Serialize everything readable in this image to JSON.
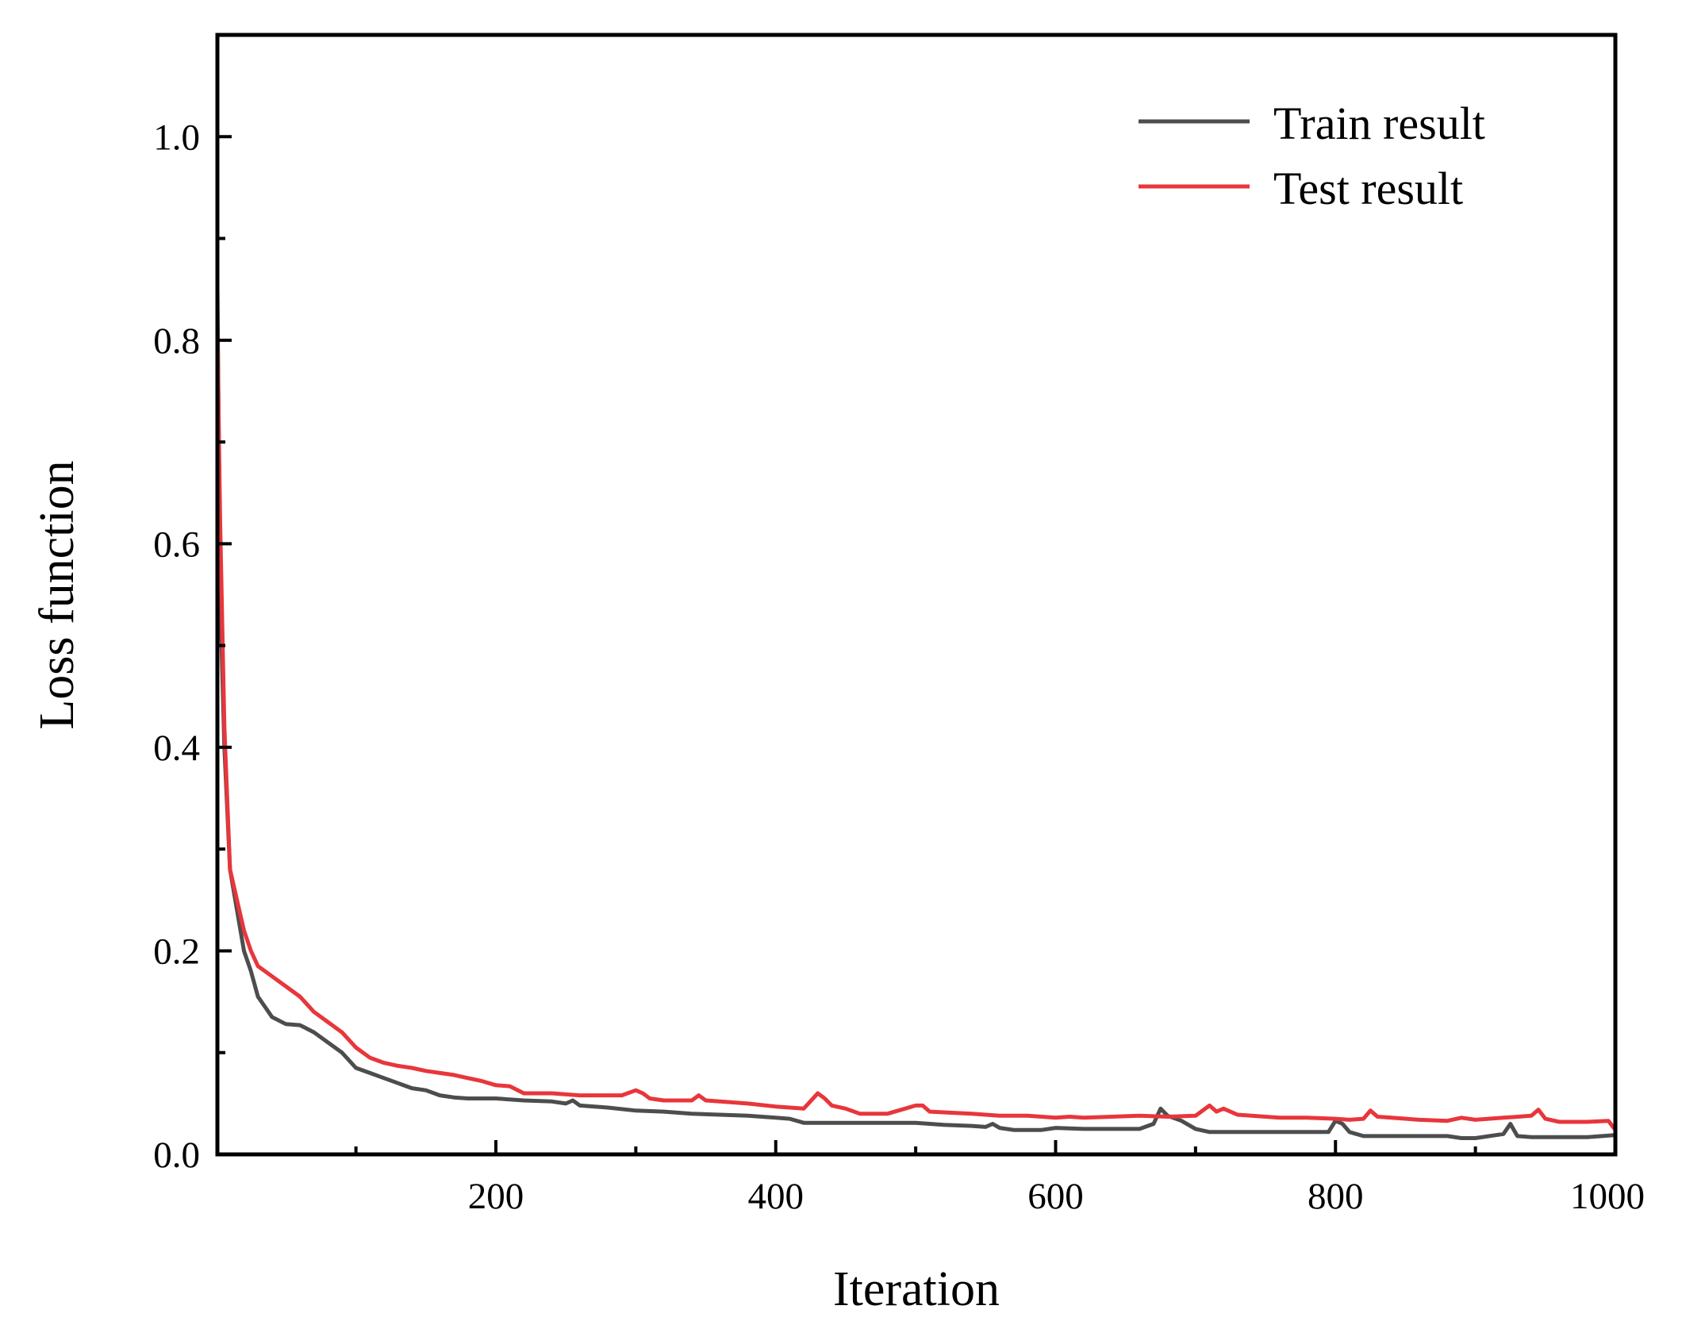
{
  "chart_data": {
    "type": "line",
    "xlabel": "Iteration",
    "ylabel": "Loss function",
    "xlim": [
      1,
      1000
    ],
    "ylim": [
      0,
      1.1
    ],
    "x_ticks": [
      200,
      400,
      600,
      800,
      1000
    ],
    "x_tick_labels": [
      "200",
      "400",
      "600",
      "800",
      "1000"
    ],
    "y_ticks": [
      0,
      0.2,
      0.4,
      0.6,
      0.8,
      1.0
    ],
    "y_tick_labels": [
      "0.0",
      "0.2",
      "0.4",
      "0.6",
      "0.8",
      "1.0"
    ],
    "grid": false,
    "legend_position": "top-right",
    "series": [
      {
        "name": "Train result",
        "color": "#4d4d4d",
        "x": [
          1,
          3,
          6,
          10,
          15,
          20,
          25,
          30,
          35,
          40,
          50,
          60,
          70,
          80,
          90,
          100,
          110,
          120,
          130,
          140,
          150,
          160,
          170,
          180,
          190,
          200,
          220,
          240,
          250,
          255,
          260,
          280,
          300,
          320,
          340,
          360,
          380,
          400,
          410,
          420,
          440,
          460,
          480,
          500,
          520,
          540,
          550,
          555,
          560,
          570,
          580,
          590,
          600,
          620,
          640,
          660,
          670,
          675,
          680,
          690,
          700,
          710,
          720,
          740,
          760,
          780,
          795,
          800,
          805,
          810,
          820,
          830,
          840,
          860,
          880,
          890,
          900,
          920,
          925,
          930,
          940,
          960,
          980,
          1000
        ],
        "y": [
          0.85,
          0.55,
          0.4,
          0.28,
          0.24,
          0.2,
          0.18,
          0.155,
          0.145,
          0.135,
          0.128,
          0.127,
          0.12,
          0.11,
          0.1,
          0.085,
          0.08,
          0.075,
          0.07,
          0.065,
          0.063,
          0.058,
          0.056,
          0.055,
          0.055,
          0.055,
          0.053,
          0.052,
          0.05,
          0.053,
          0.048,
          0.046,
          0.043,
          0.042,
          0.04,
          0.039,
          0.038,
          0.036,
          0.035,
          0.031,
          0.031,
          0.031,
          0.031,
          0.031,
          0.029,
          0.028,
          0.027,
          0.03,
          0.026,
          0.024,
          0.024,
          0.024,
          0.026,
          0.025,
          0.025,
          0.025,
          0.03,
          0.045,
          0.038,
          0.033,
          0.025,
          0.022,
          0.022,
          0.022,
          0.022,
          0.022,
          0.022,
          0.033,
          0.03,
          0.022,
          0.018,
          0.018,
          0.018,
          0.018,
          0.018,
          0.016,
          0.016,
          0.02,
          0.03,
          0.018,
          0.017,
          0.017,
          0.017,
          0.019
        ]
      },
      {
        "name": "Test result",
        "color": "#e8363b",
        "x": [
          1,
          3,
          6,
          10,
          15,
          20,
          25,
          30,
          35,
          40,
          50,
          60,
          70,
          80,
          90,
          100,
          110,
          120,
          130,
          140,
          150,
          160,
          170,
          180,
          190,
          200,
          210,
          220,
          240,
          260,
          280,
          290,
          300,
          305,
          310,
          320,
          340,
          345,
          350,
          360,
          380,
          400,
          420,
          430,
          435,
          440,
          450,
          460,
          480,
          500,
          505,
          510,
          540,
          560,
          580,
          600,
          610,
          620,
          640,
          660,
          680,
          700,
          710,
          715,
          720,
          730,
          740,
          760,
          780,
          800,
          810,
          820,
          825,
          830,
          840,
          860,
          880,
          890,
          900,
          920,
          940,
          945,
          950,
          960,
          980,
          995,
          1000
        ],
        "y": [
          0.81,
          0.62,
          0.42,
          0.28,
          0.25,
          0.22,
          0.2,
          0.185,
          0.18,
          0.175,
          0.165,
          0.155,
          0.14,
          0.13,
          0.12,
          0.105,
          0.095,
          0.09,
          0.087,
          0.085,
          0.082,
          0.08,
          0.078,
          0.075,
          0.072,
          0.068,
          0.067,
          0.06,
          0.06,
          0.058,
          0.058,
          0.058,
          0.063,
          0.06,
          0.055,
          0.053,
          0.053,
          0.058,
          0.053,
          0.052,
          0.05,
          0.047,
          0.045,
          0.06,
          0.055,
          0.048,
          0.045,
          0.04,
          0.04,
          0.048,
          0.048,
          0.042,
          0.04,
          0.038,
          0.038,
          0.036,
          0.037,
          0.036,
          0.037,
          0.038,
          0.037,
          0.038,
          0.048,
          0.042,
          0.045,
          0.039,
          0.038,
          0.036,
          0.036,
          0.035,
          0.034,
          0.035,
          0.043,
          0.037,
          0.036,
          0.034,
          0.033,
          0.036,
          0.034,
          0.036,
          0.038,
          0.044,
          0.035,
          0.032,
          0.032,
          0.033,
          0.024
        ]
      }
    ]
  }
}
